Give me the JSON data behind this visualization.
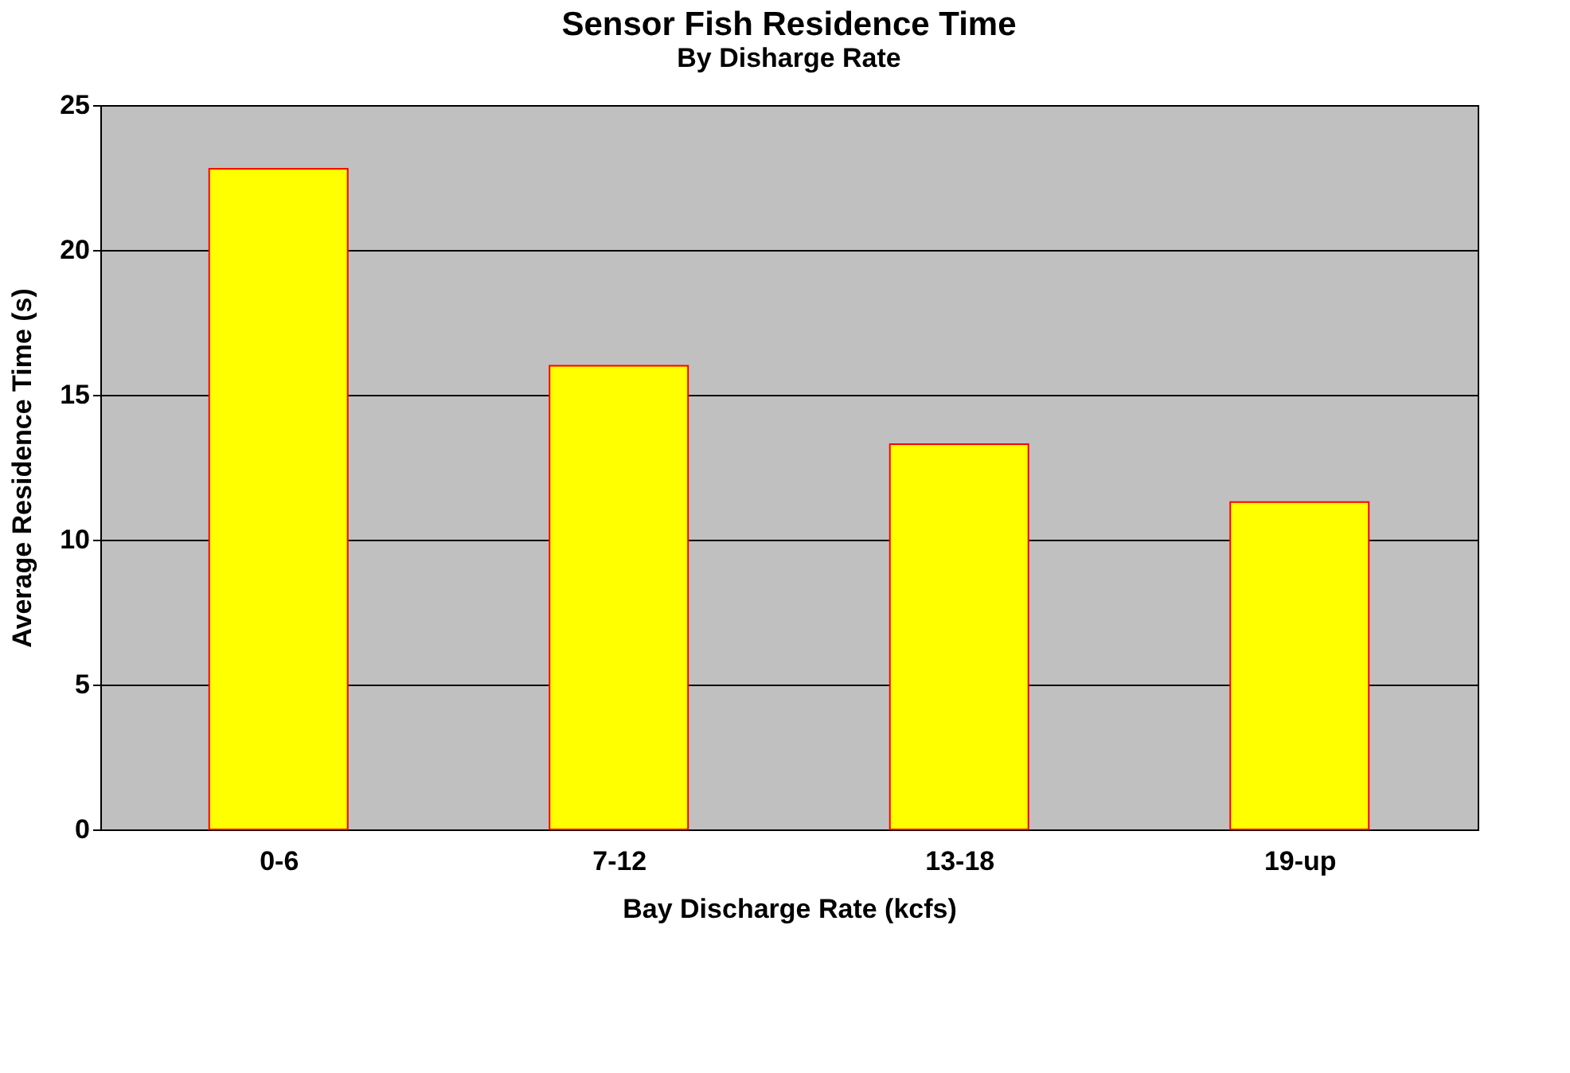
{
  "chart_data": {
    "type": "bar",
    "title": "Sensor Fish Residence Time",
    "subtitle": "By Disharge Rate",
    "xlabel": "Bay Discharge Rate (kcfs)",
    "ylabel": "Average Residence Time (s)",
    "categories": [
      "0-6",
      "7-12",
      "13-18",
      "19-up"
    ],
    "series": [
      {
        "color": "#ffff00",
        "values": [
          22.8,
          16.0,
          13.3,
          11.3
        ]
      }
    ],
    "ylim": [
      0,
      25
    ],
    "yticks": [
      0,
      5,
      10,
      15,
      20,
      25
    ],
    "grid": "y",
    "legend": false
  }
}
